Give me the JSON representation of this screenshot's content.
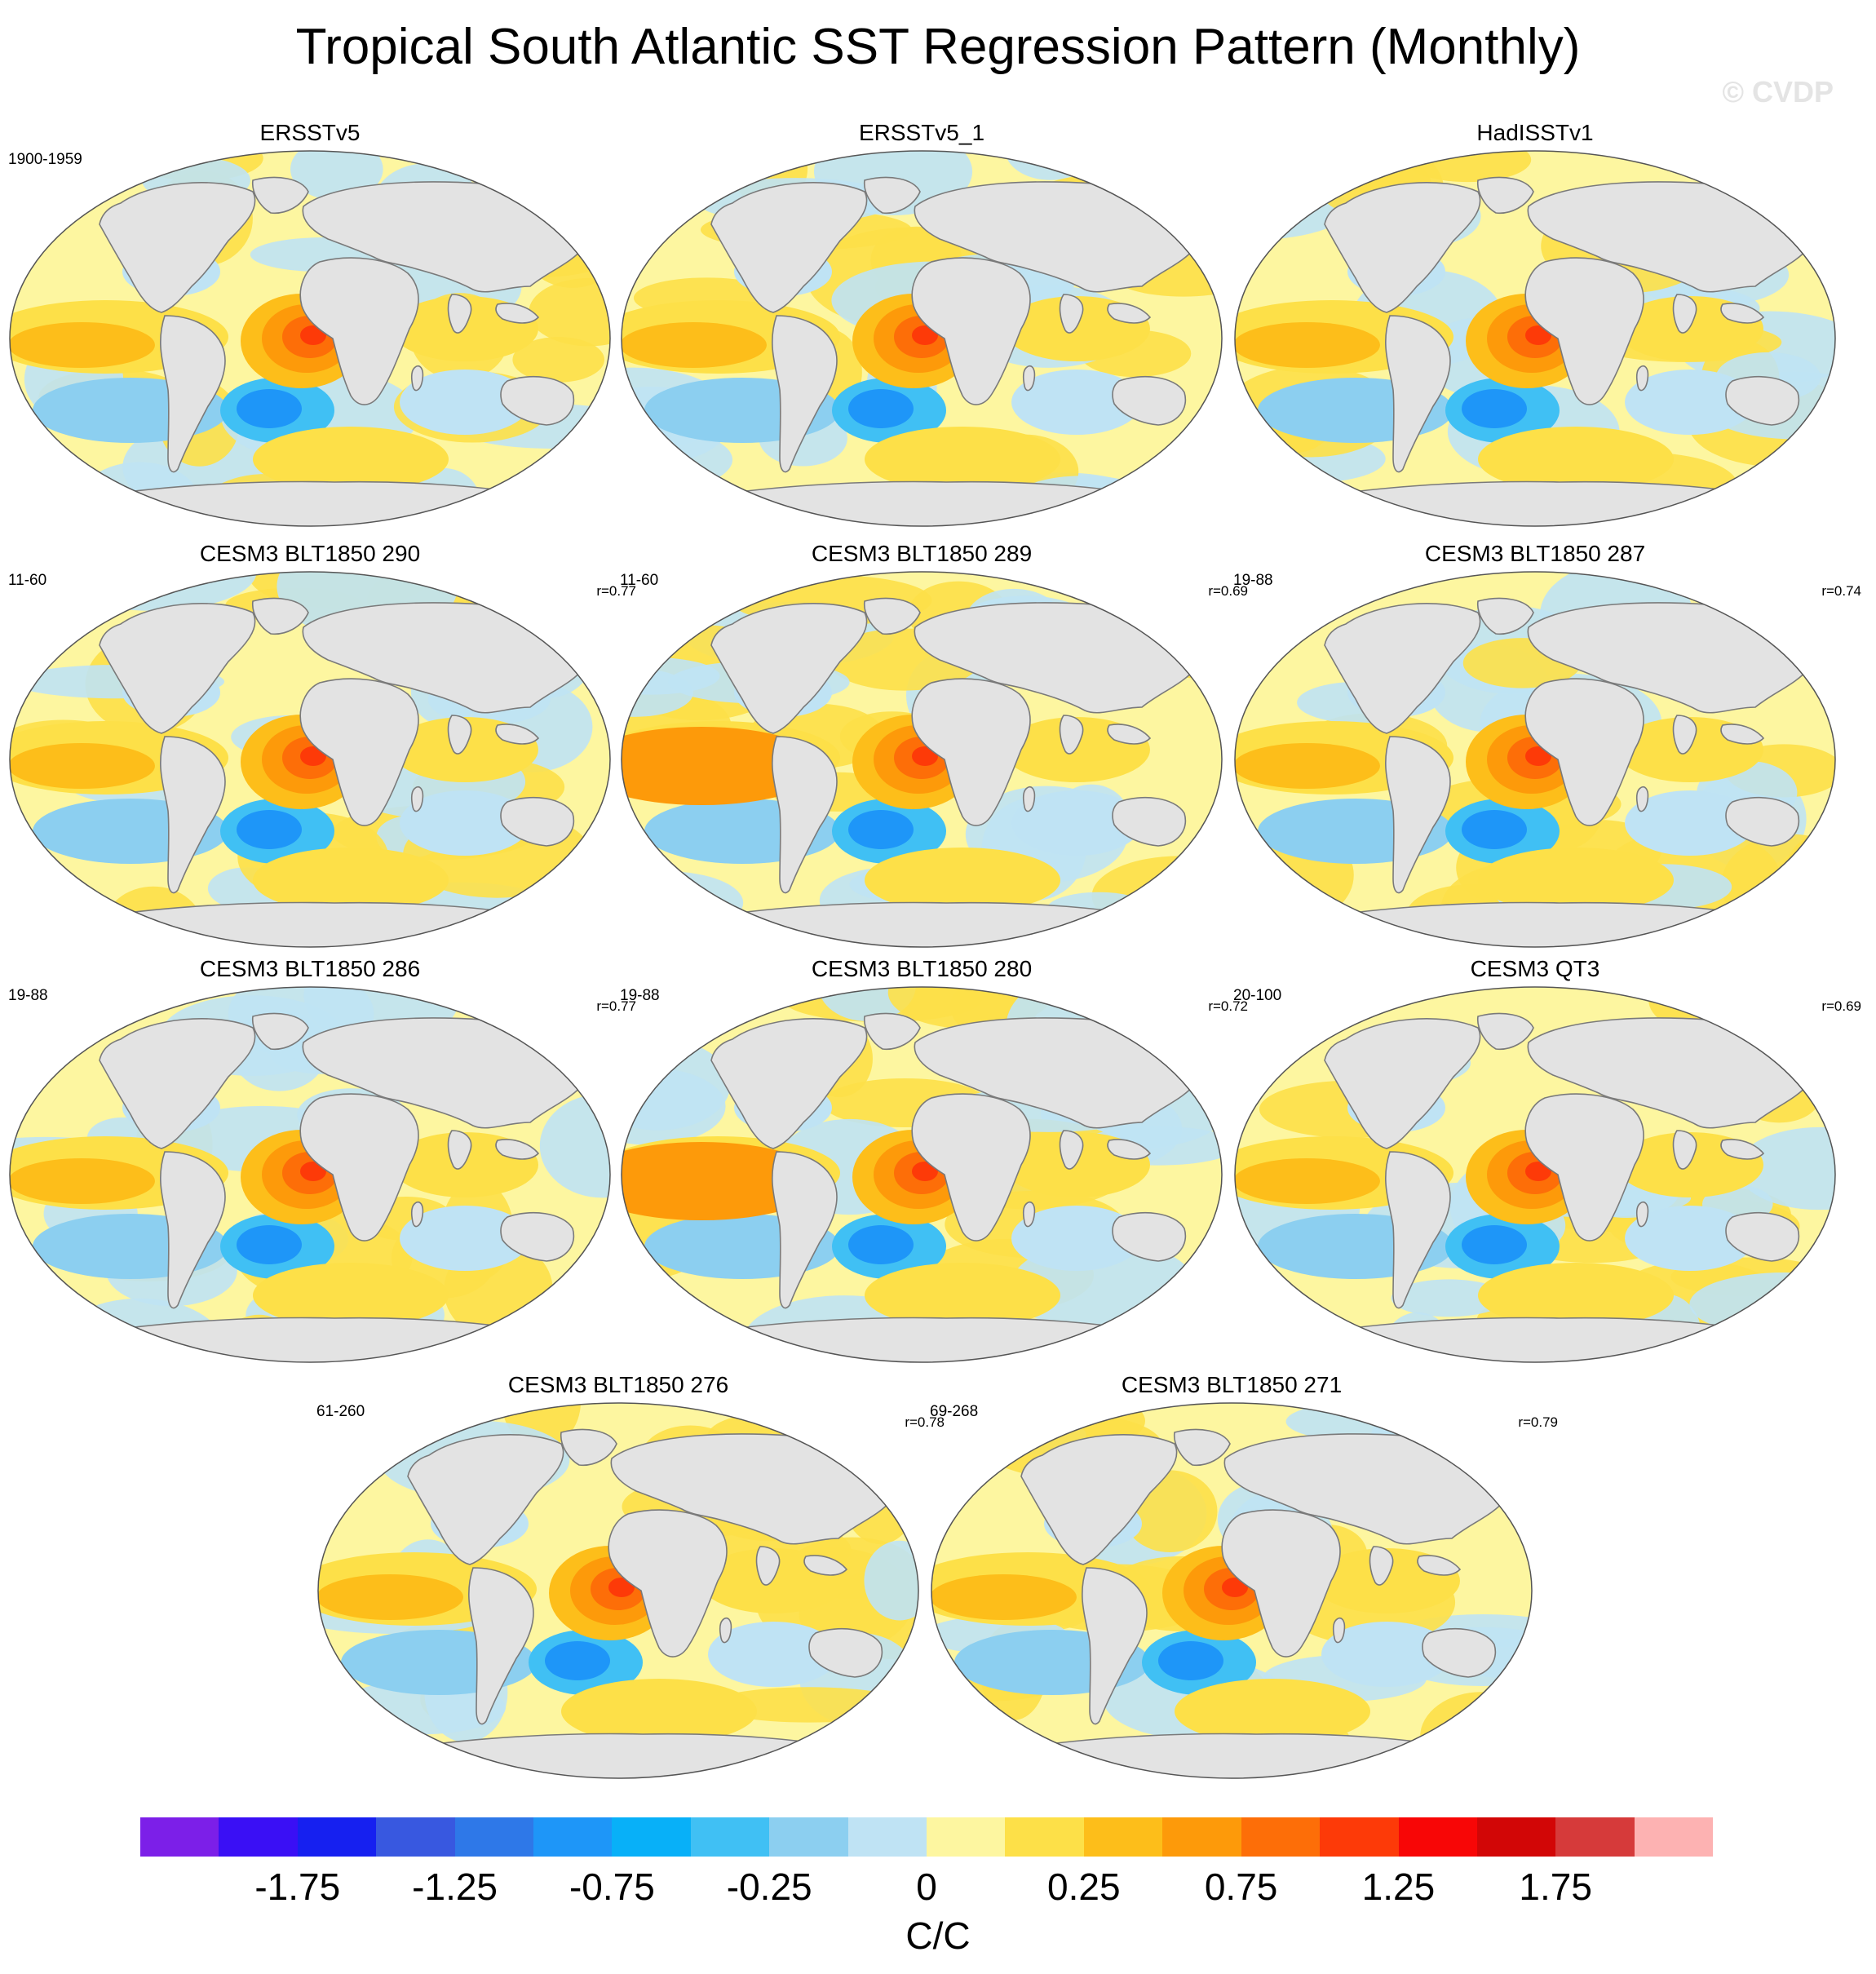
{
  "title": "Tropical South Atlantic SST Regression Pattern (Monthly)",
  "watermark": "© CVDP",
  "panels": [
    {
      "title": "ERSSTv5",
      "period": "1900-1959",
      "r": ""
    },
    {
      "title": "ERSSTv5_1",
      "period": "",
      "r": ""
    },
    {
      "title": "HadISSTv1",
      "period": "",
      "r": ""
    },
    {
      "title": "CESM3 BLT1850 290",
      "period": "11-60",
      "r": "r=0.77"
    },
    {
      "title": "CESM3 BLT1850 289",
      "period": "11-60",
      "r": "r=0.69"
    },
    {
      "title": "CESM3 BLT1850 287",
      "period": "19-88",
      "r": "r=0.74"
    },
    {
      "title": "CESM3 BLT1850 286",
      "period": "19-88",
      "r": "r=0.77"
    },
    {
      "title": "CESM3 BLT1850 280",
      "period": "19-88",
      "r": "r=0.72"
    },
    {
      "title": "CESM3 QT3",
      "period": "20-100",
      "r": "r=0.69"
    },
    {
      "title": "CESM3 BLT1850 276",
      "period": "61-260",
      "r": "r=0.78"
    },
    {
      "title": "CESM3 BLT1850 271",
      "period": "69-268",
      "r": "r=0.79"
    }
  ],
  "colorbar": {
    "colors": [
      "#7c1fe8",
      "#3a0ff5",
      "#1620f0",
      "#3858e0",
      "#2e78e8",
      "#1e96f8",
      "#08b0f8",
      "#40c0f4",
      "#8ccff0",
      "#bfe3f4",
      "#fdf6a0",
      "#fde048",
      "#fdbe1a",
      "#fd9a0a",
      "#fd6e08",
      "#fd3a08",
      "#f80606",
      "#d20606",
      "#d63a3a",
      "#fdb2b2"
    ],
    "tick_labels": [
      "-1.75",
      "-1.25",
      "-0.75",
      "-0.25",
      "0",
      "0.25",
      "0.75",
      "1.25",
      "1.75"
    ],
    "units": "C/C"
  },
  "colors": {
    "land": "#e3e3e3",
    "coast": "#7a7a7a"
  }
}
